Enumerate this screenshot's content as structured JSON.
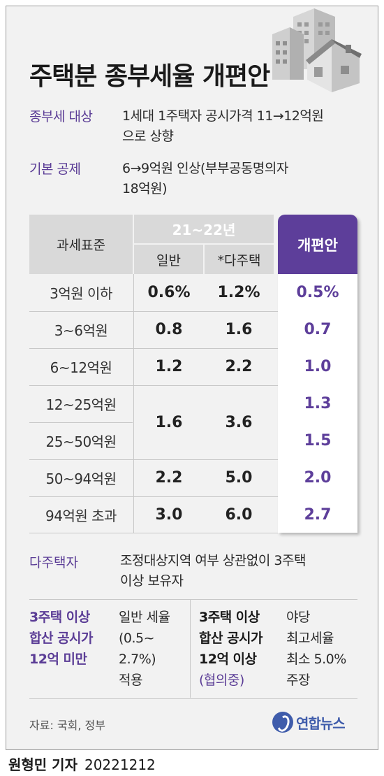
{
  "title": "주택분 종부세율 개편안",
  "info": [
    {
      "label": "종부세 대상",
      "line1": "1세대 1주택자 공시가격 11→12억원",
      "line2": "으로 상향"
    },
    {
      "label": "기본 공제",
      "line1": "6→9억원 인상(부부공동명의자",
      "line2": "18억원)"
    }
  ],
  "table": {
    "col_standard": "과세표준",
    "col_period": "21~22년",
    "col_general": "일반",
    "col_multi": "*다주택",
    "col_new": "개편안",
    "rows": [
      {
        "std": "3억원 이하",
        "general": "0.6%",
        "multi": "1.2%",
        "new": "0.5%"
      },
      {
        "std": "3~6억원",
        "general": "0.8",
        "multi": "1.6",
        "new": "0.7"
      },
      {
        "std": "6~12억원",
        "general": "1.2",
        "multi": "2.2",
        "new": "1.0"
      },
      {
        "std": "12~25억원",
        "new": "1.3"
      },
      {
        "std": "25~50억원",
        "new": "1.5"
      },
      {
        "std": "50~94억원",
        "general": "2.2",
        "multi": "5.0",
        "new": "2.0"
      },
      {
        "std": "94억원 초과",
        "general": "3.0",
        "multi": "6.0",
        "new": "2.7"
      }
    ],
    "merged": {
      "general": "1.6",
      "multi": "3.6"
    }
  },
  "multi_owner": {
    "label": "다주택자",
    "line1": "조정대상지역 여부 상관없이 3주택",
    "line2": "이상 보유자"
  },
  "left_block": {
    "title1": "3주택 이상",
    "title2": "합산 공시가",
    "title3": "12억 미만",
    "text1": "일반 세율",
    "text2": "(0.5~",
    "text3": "2.7%)",
    "text4": "적용"
  },
  "right_block": {
    "title1": "3주택 이상",
    "title2": "합산 공시가",
    "title3": "12억 이상",
    "title4": "(협의중)",
    "text1": "야당",
    "text2": "최고세율",
    "text3": "최소 5.0%",
    "text4": "주장"
  },
  "source": "자료: 국회, 정부",
  "logo": "연합뉴스",
  "reporter": "원형민 기자",
  "date": "20221212",
  "colors": {
    "accent": "#5d3e9a",
    "header_gray": "#d9d9d9",
    "background": "#f2f2f2"
  }
}
